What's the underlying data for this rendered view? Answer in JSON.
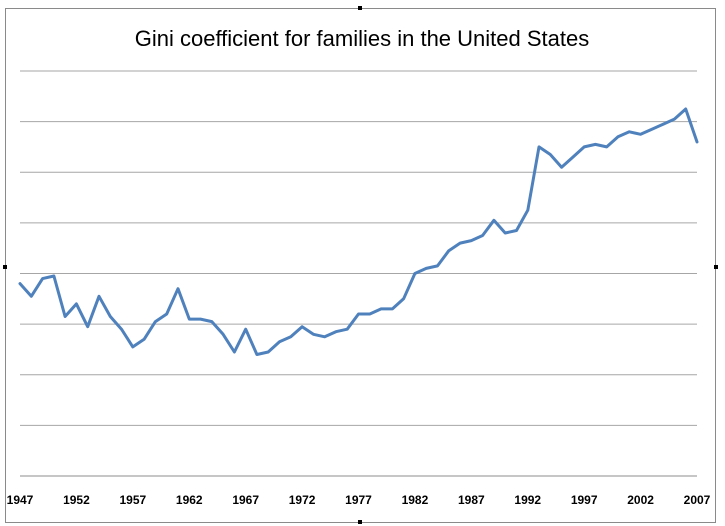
{
  "chart_data": {
    "type": "line",
    "title": "Gini coefficient for families in the United States",
    "xlabel": "",
    "ylabel": "",
    "x_tick_labels": [
      "1947",
      "1952",
      "1957",
      "1962",
      "1967",
      "1972",
      "1977",
      "1982",
      "1987",
      "1992",
      "1997",
      "2002",
      "2007"
    ],
    "xlim": [
      1947,
      2007
    ],
    "y_axis_labels_visible": false,
    "ylim": [
      0,
      8
    ],
    "grid": true,
    "legend": "none",
    "line_color": "#4f81bd",
    "series": [
      {
        "x": [
          1947,
          1948,
          1949,
          1950,
          1951,
          1952,
          1953,
          1954,
          1955,
          1956,
          1957,
          1958,
          1959,
          1960,
          1961,
          1962,
          1963,
          1964,
          1965,
          1966,
          1967,
          1968,
          1969,
          1970,
          1971,
          1972,
          1973,
          1974,
          1975,
          1976,
          1977,
          1978,
          1979,
          1980,
          1981,
          1982,
          1983,
          1984,
          1985,
          1986,
          1987,
          1988,
          1989,
          1990,
          1991,
          1992,
          1993,
          1994,
          1995,
          1996,
          1997,
          1998,
          1999,
          2000,
          2001,
          2002,
          2003,
          2004,
          2005,
          2006,
          2007
        ],
        "values": [
          3.8,
          3.55,
          3.9,
          3.95,
          3.15,
          3.4,
          2.95,
          3.55,
          3.15,
          2.9,
          2.55,
          2.7,
          3.05,
          3.2,
          3.7,
          3.1,
          3.1,
          3.05,
          2.8,
          2.45,
          2.9,
          2.4,
          2.45,
          2.65,
          2.75,
          2.95,
          2.8,
          2.75,
          2.85,
          2.9,
          3.2,
          3.2,
          3.3,
          3.3,
          3.5,
          4.0,
          4.1,
          4.15,
          4.45,
          4.6,
          4.65,
          4.75,
          5.05,
          4.8,
          4.85,
          5.25,
          6.5,
          6.35,
          6.1,
          6.3,
          6.5,
          6.55,
          6.5,
          6.7,
          6.8,
          6.75,
          6.85,
          6.95,
          7.05,
          7.25,
          6.6
        ]
      }
    ]
  }
}
